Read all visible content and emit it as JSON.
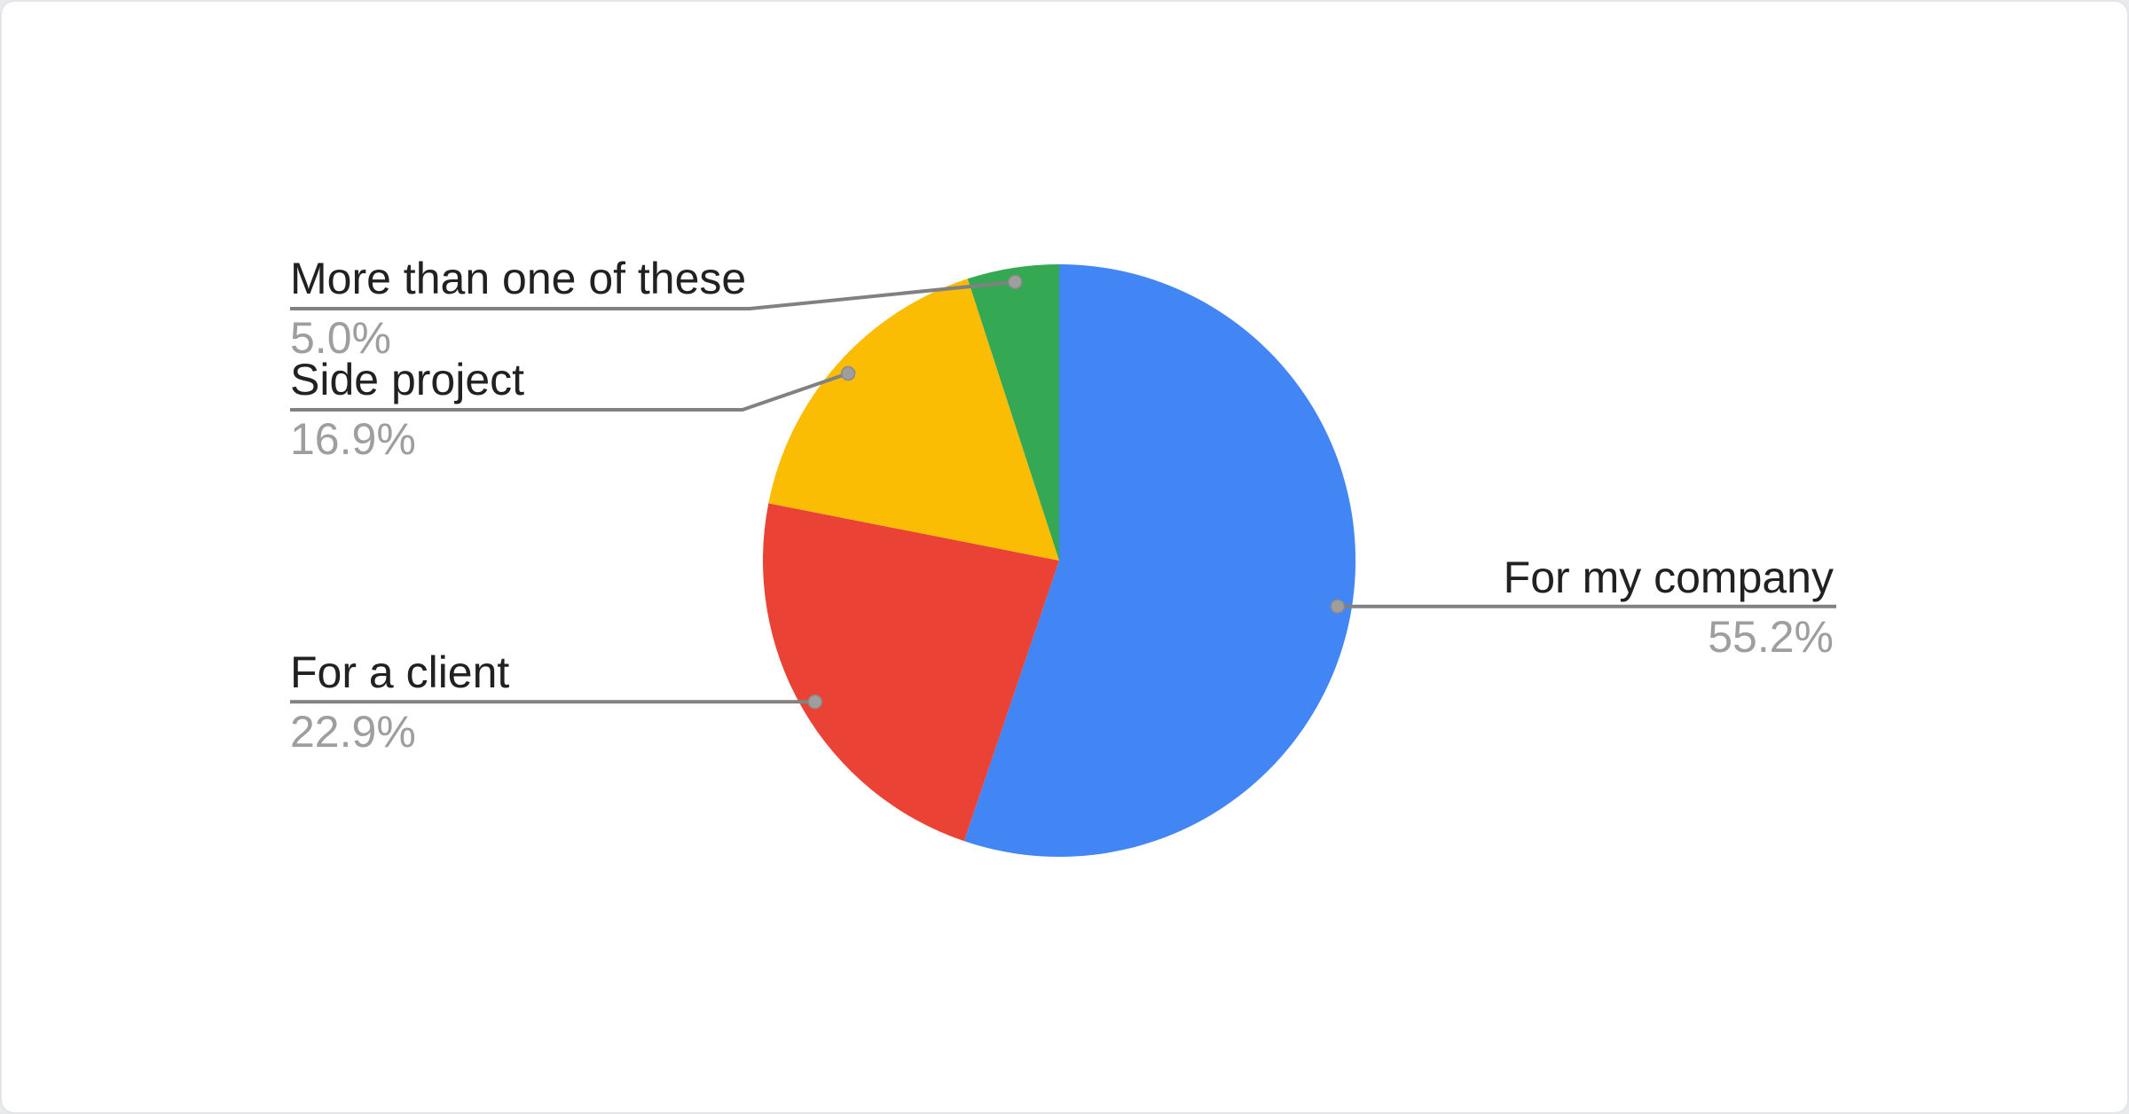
{
  "card": {
    "background": "#ffffff",
    "page_background": "#e8eaed"
  },
  "chart_data": {
    "type": "pie",
    "title": "",
    "categories": [
      "For my company",
      "For a client",
      "Side project",
      "More than one of these"
    ],
    "values": [
      55.2,
      22.9,
      16.9,
      5.0
    ],
    "series": [
      {
        "name": "For my company",
        "value": 55.2,
        "pct_label": "55.2%",
        "color": "#4285F4"
      },
      {
        "name": "For a client",
        "value": 22.9,
        "pct_label": "22.9%",
        "color": "#EA4335"
      },
      {
        "name": "Side project",
        "value": 16.9,
        "pct_label": "16.9%",
        "color": "#FBBC04"
      },
      {
        "name": "More than one of these",
        "value": 5.0,
        "pct_label": "5.0%",
        "color": "#34A853"
      }
    ],
    "start_angle_deg": 0,
    "direction": "clockwise",
    "legend_position": "callout-labels",
    "leader_line_color": "#818181",
    "leader_dot_color": "#9e9e9e",
    "label_color": "#212121",
    "pct_color": "#9e9e9e"
  },
  "callouts": [
    {
      "label": "For my company",
      "pct": "55.2%"
    },
    {
      "label": "For a client",
      "pct": "22.9%"
    },
    {
      "label": "Side project",
      "pct": "16.9%"
    },
    {
      "label": "More than one of these",
      "pct": "5.0%"
    }
  ]
}
